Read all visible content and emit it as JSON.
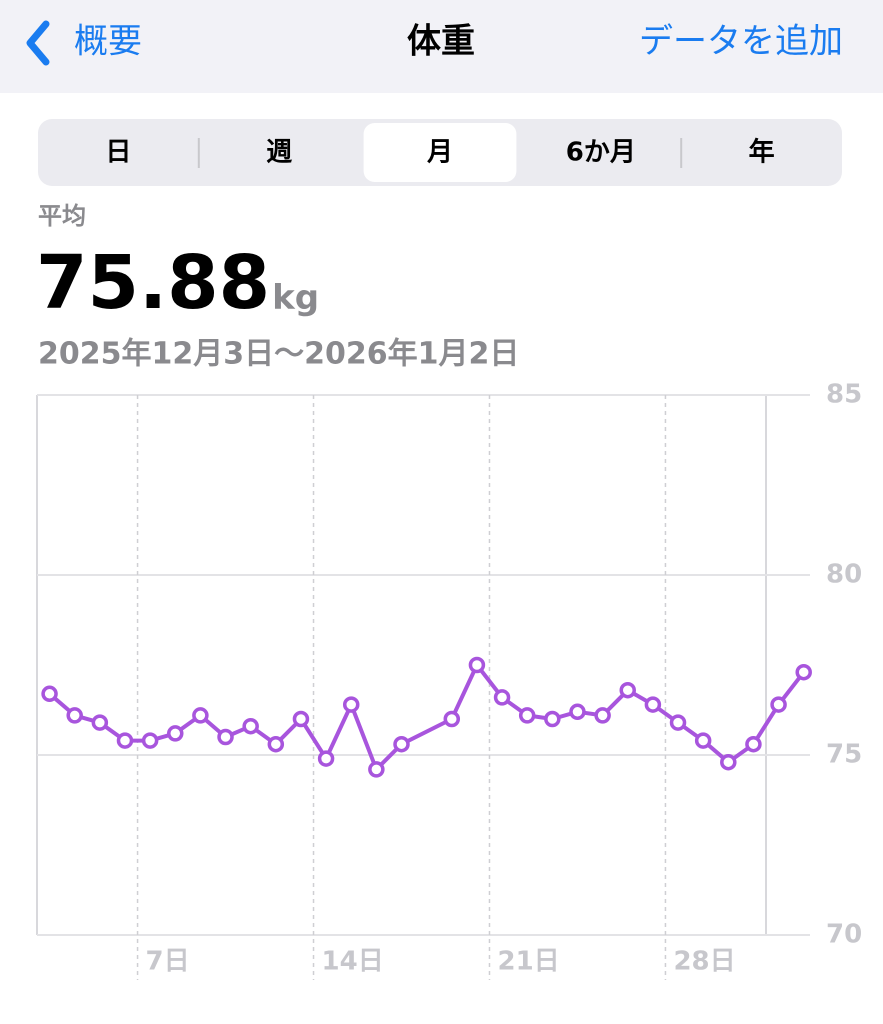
{
  "nav": {
    "back": "概要",
    "title": "体重",
    "action": "データを追加"
  },
  "segments": {
    "items": [
      "日",
      "週",
      "月",
      "6か月",
      "年"
    ],
    "selected": 2
  },
  "summary": {
    "label": "平均",
    "value": "75.88",
    "unit": "kg",
    "range": "2025年12月3日〜2026年1月2日"
  },
  "chart_data": {
    "type": "line",
    "x": [
      3.5,
      4.5,
      5.5,
      6.5,
      7.5,
      8.5,
      9.5,
      10.5,
      11.5,
      12.5,
      13.5,
      14.5,
      15.5,
      16.5,
      17.5,
      19.5,
      20.5,
      21.5,
      22.5,
      23.5,
      24.5,
      25.5,
      26.5,
      27.5,
      28.5,
      29.5,
      30.5,
      31.5,
      32.5,
      33.5
    ],
    "series": [
      {
        "color": "#a855dd",
        "values": [
          76.7,
          76.1,
          75.9,
          75.4,
          75.4,
          75.6,
          76.1,
          75.5,
          75.8,
          75.3,
          76.0,
          74.9,
          76.4,
          74.6,
          75.3,
          76.0,
          77.5,
          76.6,
          76.1,
          76.0,
          76.2,
          76.1,
          76.8,
          76.4,
          75.9,
          75.4,
          74.8,
          75.3,
          76.4,
          77.3
        ]
      }
    ],
    "xlim": [
      3,
      33.75
    ],
    "xticks": [
      {
        "value": 7,
        "label": "7日"
      },
      {
        "value": 14,
        "label": "14日"
      },
      {
        "value": 21,
        "label": "21日"
      },
      {
        "value": 28,
        "label": "28日"
      }
    ],
    "ylim": [
      70,
      85
    ],
    "yticks": [
      85,
      80,
      75,
      70
    ],
    "grid": true
  }
}
